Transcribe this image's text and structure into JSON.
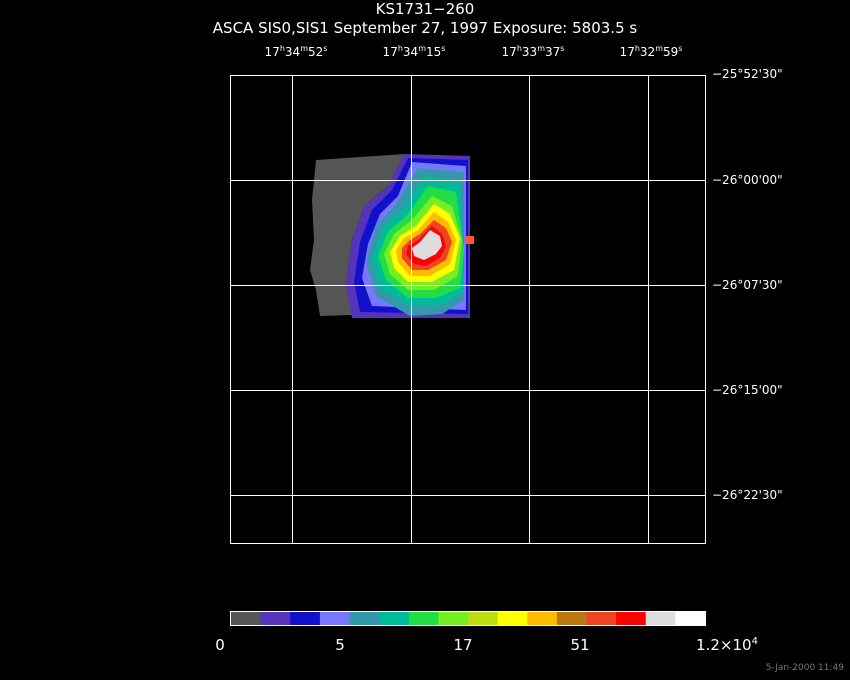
{
  "header": {
    "title": "KS1731−260",
    "subtitle": "ASCA SIS0,SIS1 September 27, 1997 Exposure: 5803.5 s"
  },
  "ra_ticks": [
    {
      "h": "17",
      "m": "34",
      "s": "52"
    },
    {
      "h": "17",
      "m": "34",
      "s": "15"
    },
    {
      "h": "17",
      "m": "33",
      "s": "37"
    },
    {
      "h": "17",
      "m": "32",
      "s": "59"
    }
  ],
  "dec_ticks": [
    "−25°52'30\"",
    "−26°00'00\"",
    "−26°07'30\"",
    "−26°15'00\"",
    "−26°22'30\""
  ],
  "colorbar": {
    "colors": [
      "#555555",
      "#5533bb",
      "#1111cc",
      "#7777ff",
      "#3399aa",
      "#00bb99",
      "#22dd44",
      "#77ee22",
      "#bbdd11",
      "#ffff00",
      "#ffbb00",
      "#bb7711",
      "#ee4422",
      "#ff0000",
      "#dddddd",
      "#ffffff"
    ],
    "labels": [
      "0",
      "5",
      "17",
      "51"
    ],
    "max_label_base": "1.2×10",
    "max_label_exp": "4"
  },
  "image_data": {
    "source": "KS1731−260",
    "peak_color": "#dddddd"
  },
  "timestamp": "5-Jan-2000 11:49"
}
